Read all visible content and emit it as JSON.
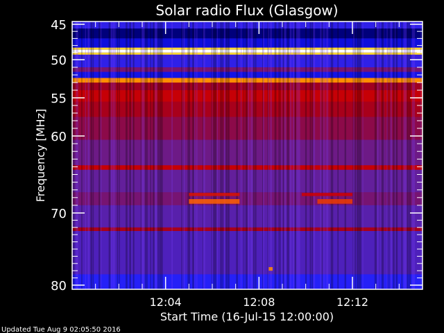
{
  "chart_data": {
    "type": "heatmap",
    "title": "Solar radio Flux (Glasgow)",
    "xlabel": "Start Time (16-Jul-15 12:00:00)",
    "ylabel": "Frequency [MHz]",
    "xlim": [
      "12:00",
      "12:15"
    ],
    "ylim": [
      45,
      80
    ],
    "y_inverted": true,
    "x_ticks": [
      "12:04",
      "12:08",
      "12:12"
    ],
    "y_ticks": [
      45,
      50,
      55,
      60,
      70,
      80
    ],
    "colormap": [
      "#000000",
      "#0000c0",
      "#2020ff",
      "#6020a0",
      "#a00020",
      "#d00000",
      "#ff6000",
      "#ffd000",
      "#ffffff"
    ],
    "bands": [
      {
        "f0": 45.0,
        "f1": 45.6,
        "level": 0.28
      },
      {
        "f0": 45.6,
        "f1": 47.0,
        "level": 0.08
      },
      {
        "f0": 47.0,
        "f1": 48.3,
        "level": 0.18
      },
      {
        "f0": 48.3,
        "f1": 48.6,
        "level": 0.9
      },
      {
        "f0": 48.6,
        "f1": 49.0,
        "level": 1.0
      },
      {
        "f0": 49.0,
        "f1": 49.3,
        "level": 0.9
      },
      {
        "f0": 49.3,
        "f1": 50.0,
        "level": 0.3
      },
      {
        "f0": 50.0,
        "f1": 51.0,
        "level": 0.28
      },
      {
        "f0": 51.0,
        "f1": 51.6,
        "level": 0.42
      },
      {
        "f0": 51.6,
        "f1": 52.4,
        "level": 0.2
      },
      {
        "f0": 52.4,
        "f1": 53.0,
        "level": 0.8
      },
      {
        "f0": 53.0,
        "f1": 54.0,
        "level": 0.5
      },
      {
        "f0": 54.0,
        "f1": 55.5,
        "level": 0.6
      },
      {
        "f0": 55.5,
        "f1": 57.5,
        "level": 0.52
      },
      {
        "f0": 57.5,
        "f1": 60.5,
        "level": 0.46
      },
      {
        "f0": 60.5,
        "f1": 63.8,
        "level": 0.4
      },
      {
        "f0": 63.8,
        "f1": 64.4,
        "level": 0.6
      },
      {
        "f0": 64.4,
        "f1": 67.3,
        "level": 0.38
      },
      {
        "f0": 67.3,
        "f1": 69.0,
        "level": 0.42
      },
      {
        "f0": 69.0,
        "f1": 72.0,
        "level": 0.36
      },
      {
        "f0": 72.0,
        "f1": 72.5,
        "level": 0.52
      },
      {
        "f0": 72.5,
        "f1": 78.5,
        "level": 0.34
      },
      {
        "f0": 78.5,
        "f1": 80.0,
        "level": 0.26
      }
    ],
    "bursts": [
      {
        "t0": "12:05:00",
        "t1": "12:07:10",
        "f0": 67.4,
        "f1": 67.8,
        "level": 0.65
      },
      {
        "t0": "12:05:00",
        "t1": "12:07:10",
        "f0": 68.2,
        "f1": 68.8,
        "level": 0.75
      },
      {
        "t0": "12:09:50",
        "t1": "12:12:00",
        "f0": 67.4,
        "f1": 67.8,
        "level": 0.62
      },
      {
        "t0": "12:10:30",
        "t1": "12:12:00",
        "f0": 68.2,
        "f1": 68.8,
        "level": 0.7
      },
      {
        "t0": "12:08:25",
        "t1": "12:08:35",
        "f0": 77.5,
        "f1": 78.0,
        "level": 0.8
      }
    ]
  },
  "footer": {
    "updated": "Updated Tue Aug  9 02:05:50 2016"
  }
}
